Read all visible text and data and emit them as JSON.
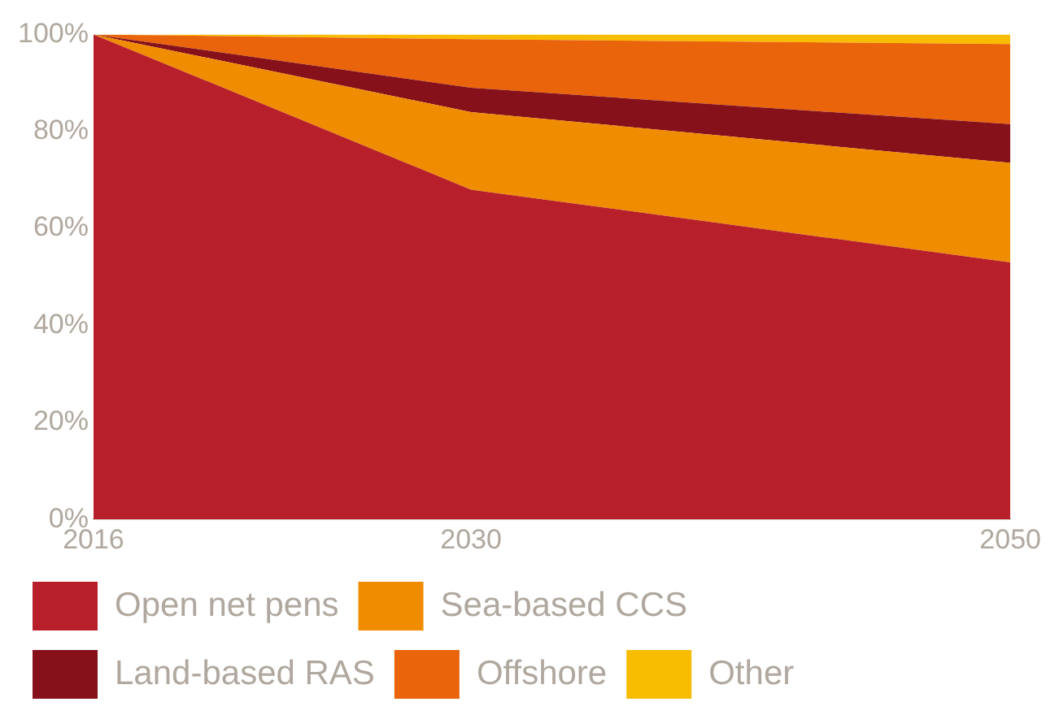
{
  "chart_data": {
    "type": "area",
    "stacked": true,
    "x": [
      2016,
      2030,
      2050
    ],
    "xlim": [
      2016,
      2050
    ],
    "xticks": [
      2016,
      2030,
      2050
    ],
    "ylim": [
      0,
      100
    ],
    "yticks": [
      {
        "value": 0,
        "label": "0%"
      },
      {
        "value": 20,
        "label": "20%"
      },
      {
        "value": 40,
        "label": "40%"
      },
      {
        "value": 60,
        "label": "60%"
      },
      {
        "value": 80,
        "label": "80%"
      },
      {
        "value": 100,
        "label": "100%"
      }
    ],
    "grid": false,
    "legend": "bottom",
    "series": [
      {
        "name": "Open net pens",
        "color": "#b71f2b",
        "values": [
          100,
          68,
          53
        ]
      },
      {
        "name": "Sea-based CCS",
        "color": "#f08c00",
        "values": [
          0,
          16,
          20.5
        ]
      },
      {
        "name": "Land-based RAS",
        "color": "#86111b",
        "values": [
          0,
          5,
          8
        ]
      },
      {
        "name": "Offshore",
        "color": "#e9640a",
        "values": [
          0,
          10,
          16.5
        ]
      },
      {
        "name": "Other",
        "color": "#f8bc00",
        "values": [
          0,
          1,
          2
        ]
      }
    ]
  }
}
